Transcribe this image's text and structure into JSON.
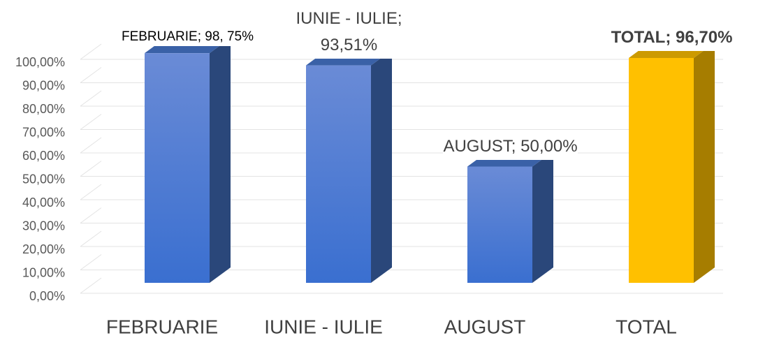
{
  "chart_data": {
    "type": "bar3d",
    "categories": [
      "FEBRUARIE",
      "IUNIE - IULIE",
      "AUGUST",
      "TOTAL"
    ],
    "values": [
      98.75,
      93.51,
      50.0,
      96.7
    ],
    "value_labels": [
      "FEBRUARIE; 98, 75%",
      "IUNIE - IULIE; 93,51%",
      "AUGUST; 50,00%",
      "TOTAL; 96,70%"
    ],
    "colors": [
      "#4472c4",
      "#4472c4",
      "#4472c4",
      "#ffc000"
    ],
    "ylim": [
      0,
      100
    ],
    "yticks": [
      {
        "value": 0,
        "label": "0,00%"
      },
      {
        "value": 10,
        "label": "10,00%"
      },
      {
        "value": 20,
        "label": "20,00%"
      },
      {
        "value": 30,
        "label": "30,00%"
      },
      {
        "value": 40,
        "label": "40,00%"
      },
      {
        "value": 50,
        "label": "50,00%"
      },
      {
        "value": 60,
        "label": "60,00%"
      },
      {
        "value": 70,
        "label": "70,00%"
      },
      {
        "value": 80,
        "label": "80,00%"
      },
      {
        "value": 90,
        "label": "90,00%"
      },
      {
        "value": 100,
        "label": "100,00%"
      }
    ],
    "grid": true
  }
}
